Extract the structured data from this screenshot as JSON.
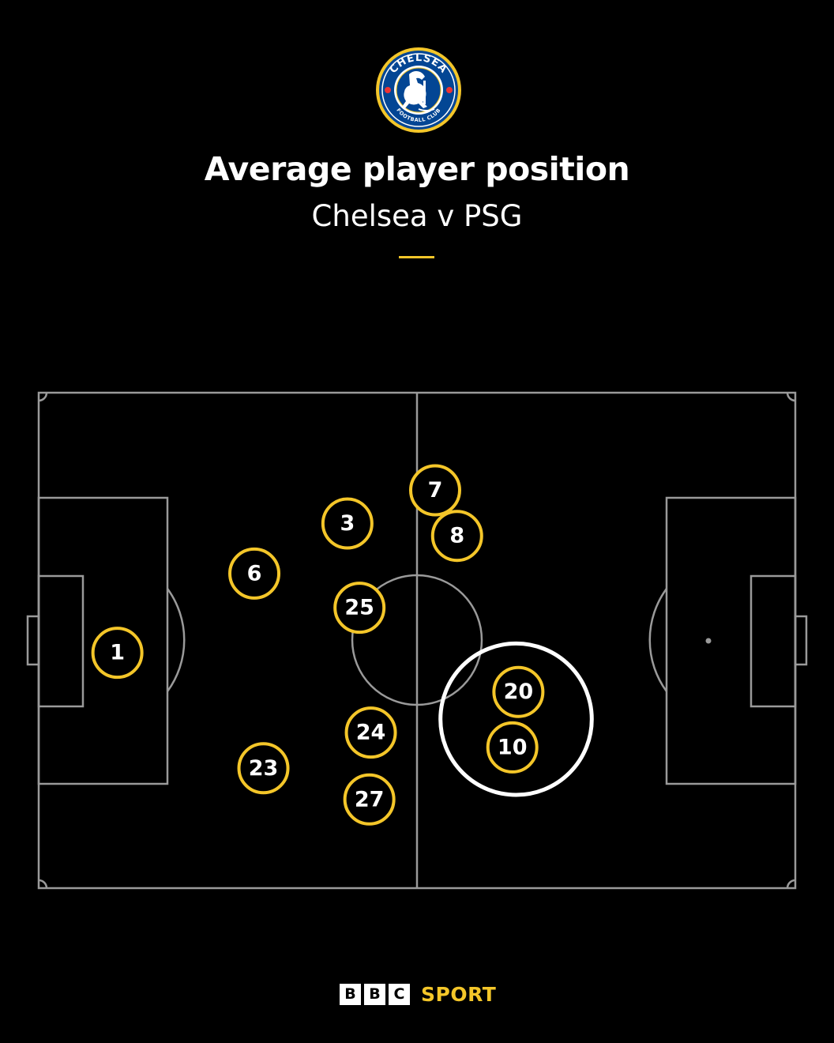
{
  "header": {
    "crest_top_text": "CHELSEA",
    "crest_bottom_text": "FOOTBALL CLUB",
    "title": "Average player position",
    "subtitle": "Chelsea v PSG"
  },
  "colors": {
    "background": "#000000",
    "pitch_lines": "#9a9a9a",
    "accent": "#f4c629",
    "highlight": "#ffffff",
    "crest_blue": "#034694"
  },
  "chart_data": {
    "type": "scatter",
    "title": "Average player position",
    "subtitle": "Chelsea v PSG",
    "x_range": [
      0,
      100
    ],
    "y_range": [
      0,
      100
    ],
    "points": [
      {
        "label": "1",
        "x": 10.4,
        "y": 52.5
      },
      {
        "label": "6",
        "x": 28.5,
        "y": 36.5
      },
      {
        "label": "3",
        "x": 40.8,
        "y": 26.4
      },
      {
        "label": "25",
        "x": 42.4,
        "y": 43.4
      },
      {
        "label": "23",
        "x": 29.7,
        "y": 75.8
      },
      {
        "label": "24",
        "x": 43.9,
        "y": 68.6
      },
      {
        "label": "27",
        "x": 43.7,
        "y": 82.1
      },
      {
        "label": "7",
        "x": 52.4,
        "y": 19.7
      },
      {
        "label": "8",
        "x": 55.3,
        "y": 28.9
      },
      {
        "label": "20",
        "x": 63.4,
        "y": 60.4
      },
      {
        "label": "10",
        "x": 62.6,
        "y": 71.6
      }
    ],
    "highlight": {
      "x": 63.1,
      "y": 65.9,
      "radius_frac": 0.1
    }
  },
  "footer": {
    "bbc_letters": [
      "B",
      "B",
      "C"
    ],
    "sport": "SPORT"
  }
}
